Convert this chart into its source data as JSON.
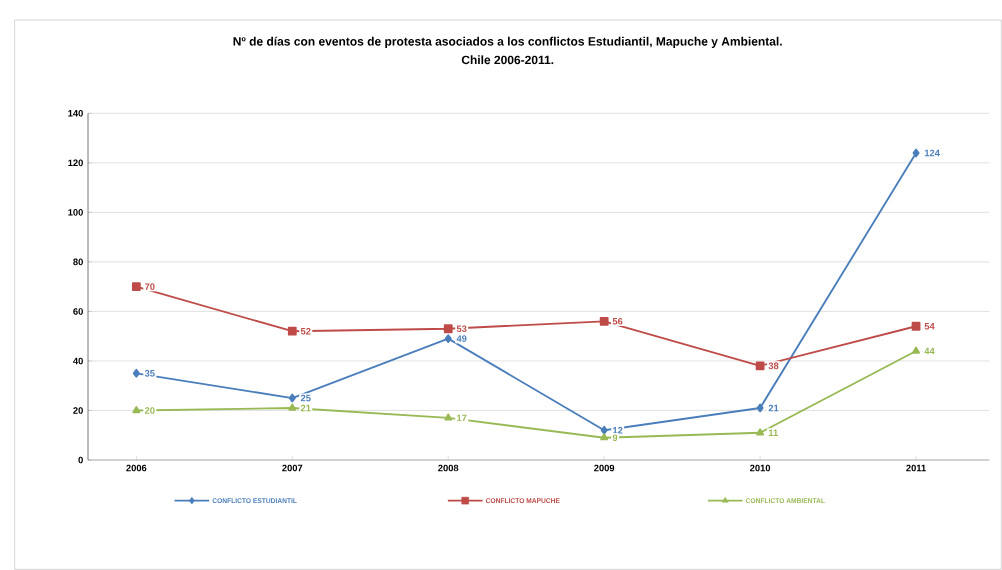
{
  "chart_data": {
    "type": "line",
    "title": "Nº de días con eventos de protesta asociados a los conflictos Estudiantil, Mapuche y Ambiental.",
    "subtitle": "Chile 2006-2011.",
    "categories": [
      "2006",
      "2007",
      "2008",
      "2009",
      "2010",
      "2011"
    ],
    "series": [
      {
        "name": "CONFLICTO ESTUDIANTIL",
        "color": "#4a7ebb",
        "marker": "diamond",
        "values": [
          35,
          25,
          49,
          12,
          21,
          124
        ]
      },
      {
        "name": "CONFLICTO MAPUCHE",
        "color": "#be4b48",
        "marker": "square",
        "values": [
          70,
          52,
          53,
          56,
          38,
          54
        ]
      },
      {
        "name": "CONFLICTO AMBIENTAL",
        "color": "#98b954",
        "marker": "triangle",
        "values": [
          20,
          21,
          17,
          9,
          11,
          44
        ]
      }
    ],
    "ylim": [
      0,
      140
    ],
    "yticks": [
      0,
      20,
      40,
      60,
      80,
      100,
      120,
      140
    ],
    "grid": "y",
    "legend": "bottom",
    "data_labels": true,
    "line_style": "solid"
  }
}
